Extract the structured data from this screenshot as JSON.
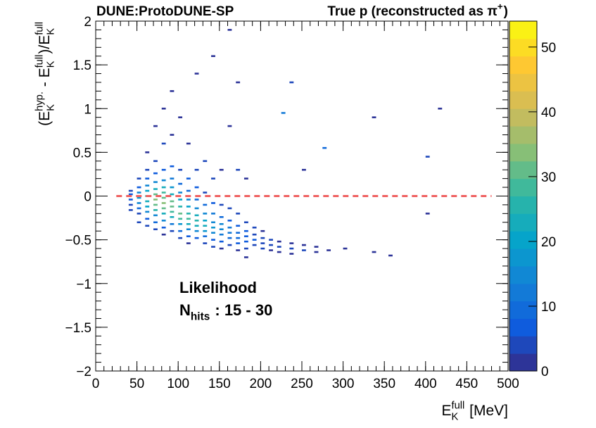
{
  "chart_data": {
    "type": "hist2d",
    "title_left": "DUNE:ProtoDUNE-SP",
    "title_right": [
      "True p (reconstructed as π",
      {
        "sup": "+"
      },
      ")"
    ],
    "xlabel": [
      "E",
      {
        "sup": "full",
        "sub": "K"
      },
      " [MeV]"
    ],
    "ylabel": [
      "(E",
      {
        "sup": "hyp.",
        "sub": "K"
      },
      " - E",
      {
        "sup": "full",
        "sub": "K"
      },
      ")/E",
      {
        "sup": "full",
        "sub": "K"
      }
    ],
    "annotations": [
      [
        "Likelihood"
      ],
      [
        "N",
        {
          "sub": "hits"
        },
        " : 15 - 30"
      ]
    ],
    "columns": [
      {
        "x": 42.5,
        "y": [
          -0.1,
          -0.04,
          0.02,
          0.06,
          -0.16
        ],
        "values": [
          5,
          8,
          6,
          3,
          3
        ]
      },
      {
        "x": 52.5,
        "y": [
          0.2,
          0.1,
          0.04,
          -0.02,
          -0.08,
          -0.14,
          -0.2,
          -0.3
        ],
        "values": [
          3,
          8,
          14,
          18,
          15,
          10,
          5,
          3
        ]
      },
      {
        "x": 62.5,
        "y": [
          0.5,
          0.3,
          0.2,
          0.12,
          0.06,
          0,
          -0.06,
          -0.12,
          -0.18,
          -0.26,
          -0.34
        ],
        "values": [
          2,
          4,
          8,
          14,
          20,
          25,
          24,
          20,
          14,
          8,
          3
        ]
      },
      {
        "x": 72.5,
        "y": [
          0.8,
          0.4,
          0.26,
          0.16,
          0.08,
          0.02,
          -0.04,
          -0.1,
          -0.16,
          -0.22,
          -0.3,
          -0.38
        ],
        "values": [
          2,
          3,
          8,
          14,
          22,
          30,
          33,
          30,
          25,
          16,
          9,
          4
        ]
      },
      {
        "x": 82.5,
        "y": [
          1.0,
          0.6,
          0.3,
          0.18,
          0.1,
          0.04,
          -0.02,
          -0.08,
          -0.14,
          -0.2,
          -0.28,
          -0.36,
          -0.44
        ],
        "values": [
          2,
          3,
          8,
          15,
          22,
          28,
          32,
          35,
          30,
          24,
          14,
          6,
          2
        ]
      },
      {
        "x": 92.5,
        "y": [
          1.2,
          0.7,
          0.34,
          0.2,
          0.1,
          0.02,
          -0.06,
          -0.12,
          -0.18,
          -0.24,
          -0.32,
          -0.4
        ],
        "values": [
          2,
          2,
          6,
          12,
          18,
          24,
          30,
          32,
          28,
          22,
          12,
          5
        ]
      },
      {
        "x": 102.5,
        "y": [
          0.9,
          0.3,
          0.14,
          0.04,
          -0.04,
          -0.12,
          -0.2,
          -0.26,
          -0.32,
          -0.4,
          -0.48
        ],
        "values": [
          2,
          5,
          10,
          16,
          20,
          26,
          30,
          27,
          18,
          9,
          3
        ]
      },
      {
        "x": 112.5,
        "y": [
          0.6,
          0.2,
          0.06,
          -0.04,
          -0.12,
          -0.2,
          -0.26,
          -0.32,
          -0.38,
          -0.46,
          -0.54
        ],
        "values": [
          2,
          6,
          10,
          15,
          20,
          26,
          28,
          24,
          16,
          7,
          2
        ]
      },
      {
        "x": 122.5,
        "y": [
          1.4,
          0.3,
          0.1,
          -0.04,
          -0.14,
          -0.22,
          -0.28,
          -0.34,
          -0.4,
          -0.48
        ],
        "values": [
          2,
          3,
          6,
          10,
          16,
          22,
          25,
          22,
          15,
          6
        ]
      },
      {
        "x": 132.5,
        "y": [
          0.4,
          0.04,
          -0.1,
          -0.2,
          -0.28,
          -0.34,
          -0.4,
          -0.46,
          -0.54
        ],
        "values": [
          3,
          5,
          10,
          16,
          20,
          22,
          18,
          10,
          4
        ]
      },
      {
        "x": 142.5,
        "y": [
          1.6,
          0.2,
          -0.08,
          -0.2,
          -0.3,
          -0.36,
          -0.42,
          -0.5,
          -0.58
        ],
        "values": [
          2,
          3,
          6,
          12,
          16,
          18,
          15,
          8,
          3
        ]
      },
      {
        "x": 152.5,
        "y": [
          0.3,
          -0.1,
          -0.24,
          -0.32,
          -0.38,
          -0.44,
          -0.52,
          -0.6
        ],
        "values": [
          2,
          4,
          9,
          14,
          16,
          13,
          7,
          2
        ]
      },
      {
        "x": 162.5,
        "y": [
          1.9,
          0.8,
          -0.14,
          -0.28,
          -0.36,
          -0.42,
          -0.48,
          -0.56
        ],
        "values": [
          2,
          2,
          3,
          7,
          11,
          13,
          10,
          5
        ]
      },
      {
        "x": 172.5,
        "y": [
          1.3,
          0.3,
          -0.2,
          -0.34,
          -0.42,
          -0.48,
          -0.54,
          -0.62
        ],
        "values": [
          2,
          3,
          3,
          6,
          9,
          10,
          6,
          2
        ]
      },
      {
        "x": 182.5,
        "y": [
          0.2,
          -0.3,
          -0.4,
          -0.46,
          -0.52,
          -0.6,
          -0.7
        ],
        "values": [
          2,
          3,
          6,
          8,
          7,
          3,
          2
        ]
      },
      {
        "x": 192.5,
        "y": [
          -0.36,
          -0.44,
          -0.5,
          -0.56
        ],
        "values": [
          3,
          5,
          6,
          4
        ]
      },
      {
        "x": 202.5,
        "y": [
          -0.4,
          -0.48,
          -0.54,
          -0.6
        ],
        "values": [
          2,
          4,
          5,
          3
        ]
      },
      {
        "x": 212.5,
        "y": [
          -0.5,
          -0.56,
          -0.62
        ],
        "values": [
          3,
          4,
          2
        ]
      },
      {
        "x": 222.5,
        "y": [
          -0.52,
          -0.58,
          -0.64
        ],
        "values": [
          2,
          3,
          2
        ]
      },
      {
        "x": 227.5,
        "y": [
          0.95
        ],
        "values": [
          12
        ]
      },
      {
        "x": 237.5,
        "y": [
          1.3,
          -0.54,
          -0.6,
          -0.66
        ],
        "values": [
          3,
          2,
          3,
          2
        ]
      },
      {
        "x": 252.5,
        "y": [
          0.3,
          -0.56,
          -0.62
        ],
        "values": [
          2,
          2,
          3
        ]
      },
      {
        "x": 267.5,
        "y": [
          -0.58,
          -0.64
        ],
        "values": [
          2,
          2
        ]
      },
      {
        "x": 277.5,
        "y": [
          0.55
        ],
        "values": [
          10
        ]
      },
      {
        "x": 282.5,
        "y": [
          -0.62
        ],
        "values": [
          2
        ]
      },
      {
        "x": 302.5,
        "y": [
          -0.6
        ],
        "values": [
          2
        ]
      },
      {
        "x": 337.5,
        "y": [
          0.9,
          -0.64
        ],
        "values": [
          2,
          2
        ]
      },
      {
        "x": 357.5,
        "y": [
          -0.68
        ],
        "values": [
          2
        ]
      },
      {
        "x": 402.5,
        "y": [
          0.45,
          -0.2
        ],
        "values": [
          4,
          2
        ]
      },
      {
        "x": 417.5,
        "y": [
          1.0
        ],
        "values": [
          2
        ]
      }
    ],
    "xlim": [
      0,
      500
    ],
    "ylim": [
      -2,
      2
    ],
    "zlim": [
      0,
      54
    ],
    "xticks": [
      0,
      50,
      100,
      150,
      200,
      250,
      300,
      350,
      400,
      450,
      500
    ],
    "yticks": [
      {
        "value": -2,
        "label": "−2"
      },
      {
        "value": -1.5,
        "label": "−1.5"
      },
      {
        "value": -1,
        "label": "−1"
      },
      {
        "value": -0.5,
        "label": "−0.5"
      },
      0,
      0.5,
      1,
      1.5,
      2
    ],
    "zticks": [
      0,
      10,
      20,
      30,
      40,
      50
    ],
    "colorscale": [
      "#352a87",
      "#0f5cdd",
      "#1481d6",
      "#06a4ca",
      "#2eb7a4",
      "#87bf77",
      "#d1bb59",
      "#fec832",
      "#f9fb0e"
    ],
    "reference_line": {
      "y": 0,
      "x": [
        25,
        480
      ],
      "color": "#f06060"
    }
  }
}
